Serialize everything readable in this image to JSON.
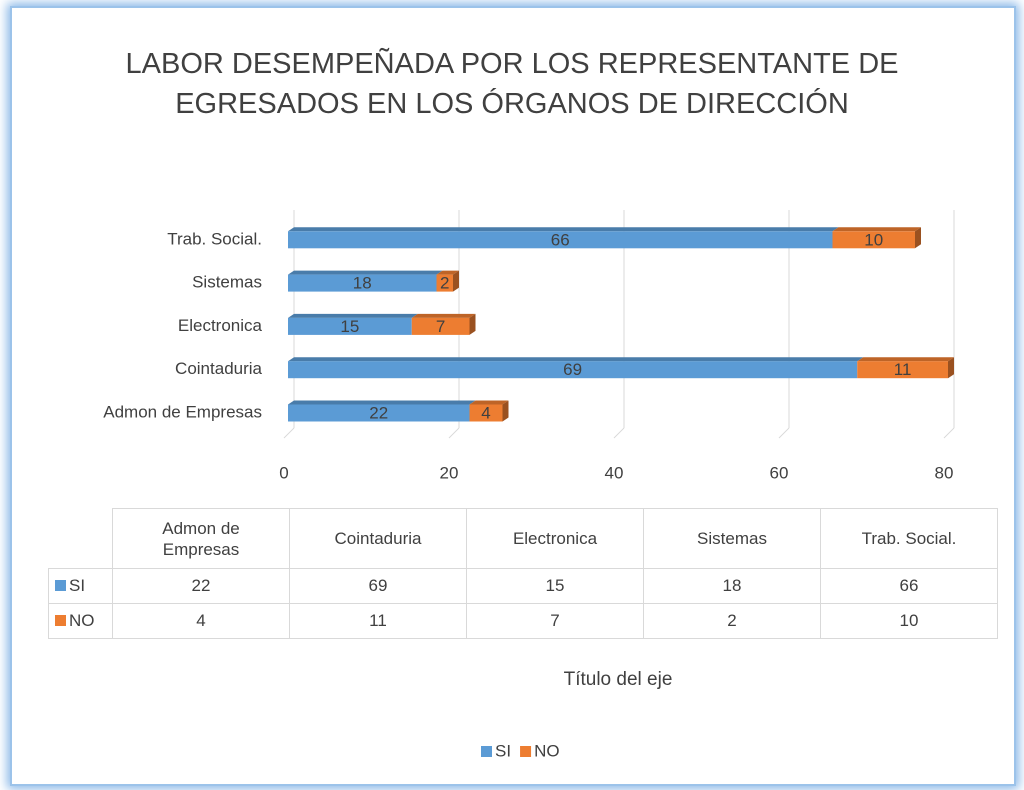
{
  "chart_data": {
    "type": "stacked-bar-horizontal",
    "title": "LABOR DESEMPEÑADA POR LOS REPRESENTANTE DE EGRESADOS EN LOS ÓRGANOS DE DIRECCIÓN",
    "categories": [
      "Admon de Empresas",
      "Cointaduria",
      "Electronica",
      "Sistemas",
      "Trab. Social."
    ],
    "series": [
      {
        "name": "SI",
        "color": "#5b9bd5",
        "values": [
          22,
          69,
          15,
          18,
          66
        ]
      },
      {
        "name": "NO",
        "color": "#ed7d31",
        "values": [
          4,
          11,
          7,
          2,
          10
        ]
      }
    ],
    "xlim": [
      0,
      80
    ],
    "xticks": [
      0,
      20,
      40,
      60,
      80
    ],
    "x_axis_title": "Título del eje",
    "grid": true,
    "legend": "bottom"
  }
}
